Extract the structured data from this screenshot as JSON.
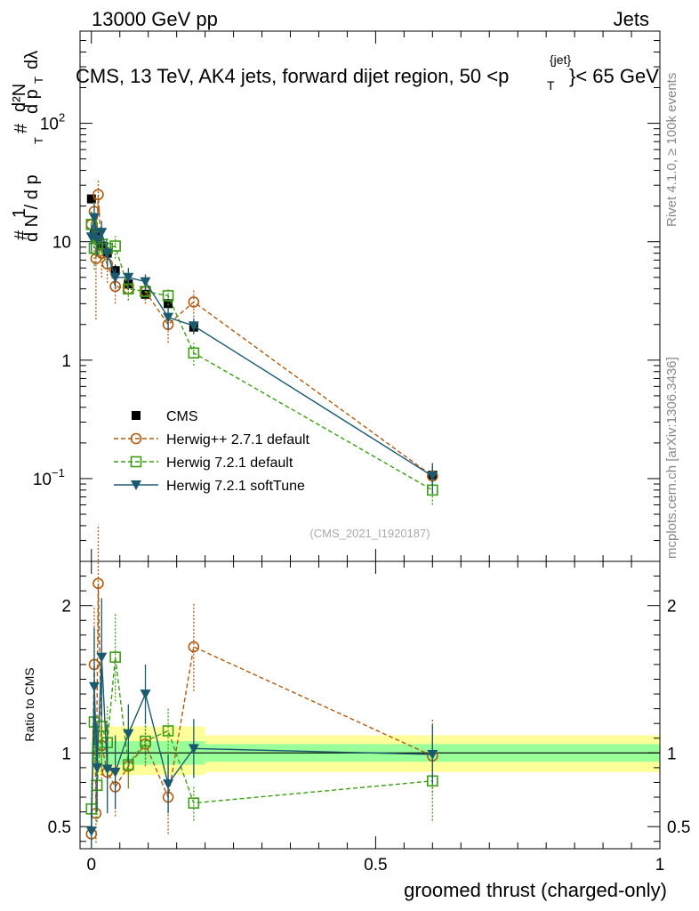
{
  "header": {
    "energy": "13000 GeV pp",
    "category": "Jets",
    "title": "CMS, 13 TeV, AK4 jets, forward dijet region, 50 <p_T^{jet}< 65 GeV",
    "title_main": "CMS, 13 TeV, AK4 jets, forward dijet region, 50 <p",
    "title_sup": "{jet}",
    "title_sub": "T",
    "title_end": "}< 65 GeV"
  },
  "side_labels": {
    "rivet": "Rivet 4.1.0, ≥ 100k events",
    "mcplots": "mcplots.cern.ch [arXiv:1306.3436]"
  },
  "analysis_id": "(CMS_2021_I1920187)",
  "colors": {
    "cms": "#000000",
    "herwigpp": "#b05a10",
    "herwig721": "#3c9e14",
    "softtune": "#1b5a6e",
    "band_outer": "#ffff99",
    "band_inner": "#99ff99"
  },
  "chart_data": [
    {
      "type": "scatter",
      "panel": "main",
      "ylabel": "1/N dN/dp_T d^2N/dp_T dλ",
      "ylabel_parts": {
        "num_frac": "1",
        "den_frac": "d N / d p",
        "num2": "d²N",
        "den2": "d p",
        "sub": "T",
        "lam": "dλ",
        "hash": "#"
      },
      "yscale": "log",
      "ylim": [
        0.02,
        600
      ],
      "xlim": [
        -0.02,
        1.0
      ],
      "y_ticks": [
        {
          "value": 0.1,
          "label": "10",
          "exp": "−1"
        },
        {
          "value": 1,
          "label": "1",
          "exp": ""
        },
        {
          "value": 10,
          "label": "10",
          "exp": ""
        },
        {
          "value": 100,
          "label": "10",
          "exp": "2"
        }
      ],
      "legend": {
        "position": "middle-left",
        "entries": [
          "CMS",
          "Herwig++ 2.7.1 default",
          "Herwig 7.2.1 default",
          "Herwig 7.2.1 softTune"
        ]
      },
      "series": [
        {
          "name": "CMS",
          "style": "square-filled",
          "x": [
            0.0,
            0.005,
            0.01,
            0.018,
            0.028,
            0.042,
            0.065,
            0.095,
            0.135,
            0.18,
            0.6
          ],
          "y": [
            23,
            11.5,
            11,
            9.2,
            8.0,
            5.7,
            4.4,
            3.6,
            3.0,
            1.9,
            0.107
          ],
          "err": [
            2,
            1.5,
            1.5,
            1.2,
            1.0,
            0.7,
            0.5,
            0.4,
            0.3,
            0.2,
            0.02
          ]
        },
        {
          "name": "Herwig++ 2.7.1 default",
          "style": "circle-open-dashed",
          "x": [
            0.0,
            0.005,
            0.008,
            0.012,
            0.018,
            0.028,
            0.042,
            0.065,
            0.095,
            0.135,
            0.18,
            0.6
          ],
          "y": [
            14,
            18,
            7.2,
            25,
            8.0,
            6.5,
            4.2,
            4.0,
            3.8,
            2.0,
            3.1,
            0.105
          ],
          "err": [
            4,
            6,
            5,
            8,
            3,
            2,
            1.2,
            0.8,
            0.8,
            0.6,
            0.8,
            0.03
          ]
        },
        {
          "name": "Herwig 7.2.1 default",
          "style": "square-open-dashed",
          "x": [
            0.0,
            0.005,
            0.01,
            0.018,
            0.028,
            0.042,
            0.065,
            0.095,
            0.135,
            0.18,
            0.6
          ],
          "y": [
            14,
            8.8,
            11,
            9.5,
            8.8,
            9.2,
            4.0,
            3.8,
            3.5,
            1.15,
            0.08
          ],
          "err": [
            4,
            3,
            3,
            2.5,
            2,
            2,
            0.8,
            0.6,
            0.6,
            0.25,
            0.02
          ]
        },
        {
          "name": "Herwig 7.2.1 softTune",
          "style": "triangle-down-solid",
          "x": [
            0.0,
            0.005,
            0.01,
            0.018,
            0.028,
            0.042,
            0.065,
            0.095,
            0.135,
            0.18,
            0.6
          ],
          "y": [
            11,
            16,
            10.5,
            12,
            8.0,
            5.0,
            5.0,
            4.6,
            2.3,
            1.95,
            0.105
          ],
          "err": [
            3,
            5,
            3,
            3,
            2,
            1.0,
            1.0,
            0.7,
            0.5,
            0.3,
            0.03
          ]
        }
      ]
    },
    {
      "type": "scatter",
      "panel": "ratio",
      "ylabel": "Ratio to CMS",
      "xlabel": "groomed thrust (charged-only)",
      "ylim": [
        0.35,
        2.3
      ],
      "xlim": [
        -0.02,
        1.0
      ],
      "x_ticks": [
        {
          "value": 0,
          "label": "0"
        },
        {
          "value": 0.5,
          "label": "0.5"
        },
        {
          "value": 1,
          "label": "1"
        }
      ],
      "y_ticks": [
        {
          "value": 0.5,
          "label": "0.5"
        },
        {
          "value": 1,
          "label": "1"
        },
        {
          "value": 2,
          "label": "2"
        }
      ],
      "bands": [
        {
          "x": [
            0.0,
            0.2
          ],
          "outer": [
            0.85,
            1.18
          ],
          "inner": [
            0.92,
            1.08
          ]
        },
        {
          "x": [
            0.2,
            1.0
          ],
          "outer": [
            0.87,
            1.12
          ],
          "inner": [
            0.94,
            1.06
          ]
        }
      ],
      "series": [
        {
          "name": "Herwig++ 2.7.1 default",
          "style": "circle-open-dashed",
          "x": [
            0.0,
            0.005,
            0.008,
            0.012,
            0.018,
            0.028,
            0.042,
            0.065,
            0.095,
            0.135,
            0.18,
            0.6
          ],
          "y": [
            0.45,
            1.6,
            0.59,
            2.15,
            1.05,
            0.87,
            0.77,
            0.91,
            1.06,
            0.7,
            1.72,
            0.98
          ],
          "err": [
            0.1,
            0.4,
            0.2,
            0.4,
            0.3,
            0.25,
            0.2,
            0.15,
            0.15,
            0.25,
            0.3,
            0.25
          ]
        },
        {
          "name": "Herwig 7.2.1 default",
          "style": "square-open-dashed",
          "x": [
            0.0,
            0.005,
            0.01,
            0.018,
            0.028,
            0.042,
            0.065,
            0.095,
            0.135,
            0.18,
            0.6
          ],
          "y": [
            0.62,
            1.21,
            0.78,
            1.18,
            1.07,
            1.65,
            0.92,
            1.08,
            1.15,
            0.66,
            0.81
          ],
          "err": [
            0.2,
            0.3,
            0.25,
            0.3,
            0.25,
            0.3,
            0.15,
            0.15,
            0.15,
            0.12,
            0.27
          ]
        },
        {
          "name": "Herwig 7.2.1 softTune",
          "style": "triangle-down-solid",
          "x": [
            0.0,
            0.005,
            0.01,
            0.018,
            0.028,
            0.042,
            0.065,
            0.095,
            0.135,
            0.18,
            0.6
          ],
          "y": [
            0.47,
            1.45,
            0.9,
            1.65,
            0.89,
            0.87,
            1.13,
            1.4,
            0.79,
            1.03,
            0.99
          ],
          "err": [
            0.15,
            0.4,
            0.3,
            0.4,
            0.3,
            0.25,
            0.2,
            0.2,
            0.2,
            0.2,
            0.2
          ]
        }
      ]
    }
  ]
}
